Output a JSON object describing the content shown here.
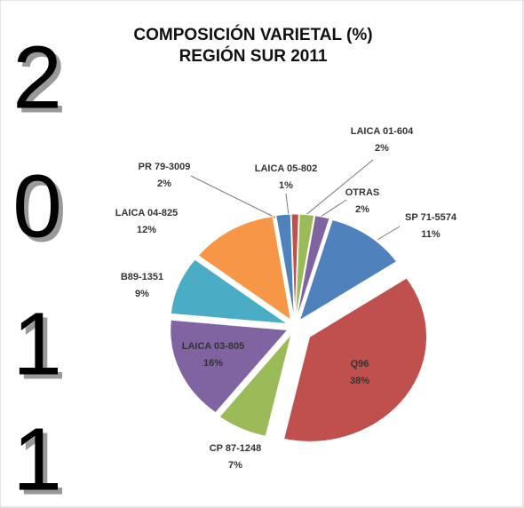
{
  "side_digits": [
    "2",
    "0",
    "1",
    "1"
  ],
  "chart_data": {
    "type": "pie",
    "title": "COMPOSICIÓN VARIETAL (%)",
    "subtitle": "REGIÓN SUR 2011",
    "categories": [
      "LAICA 05-802",
      "LAICA 01-604",
      "OTRAS",
      "SP 71-5574",
      "Q96",
      "CP 87-1248",
      "LAICA 03-805",
      "B89-1351",
      "LAICA 04-825",
      "PR 79-3009"
    ],
    "values": [
      1,
      2,
      2,
      11,
      38,
      7,
      16,
      9,
      12,
      2
    ],
    "value_labels": [
      "1%",
      "2%",
      "2%",
      "11%",
      "38%",
      "7%",
      "16%",
      "9%",
      "12%",
      "2%"
    ],
    "colors": [
      "#c0504d",
      "#9bbb59",
      "#8064a2",
      "#4f81bd",
      "#c0504d",
      "#9bbb59",
      "#8064a2",
      "#4bacc6",
      "#f79646",
      "#4f81bd"
    ]
  }
}
